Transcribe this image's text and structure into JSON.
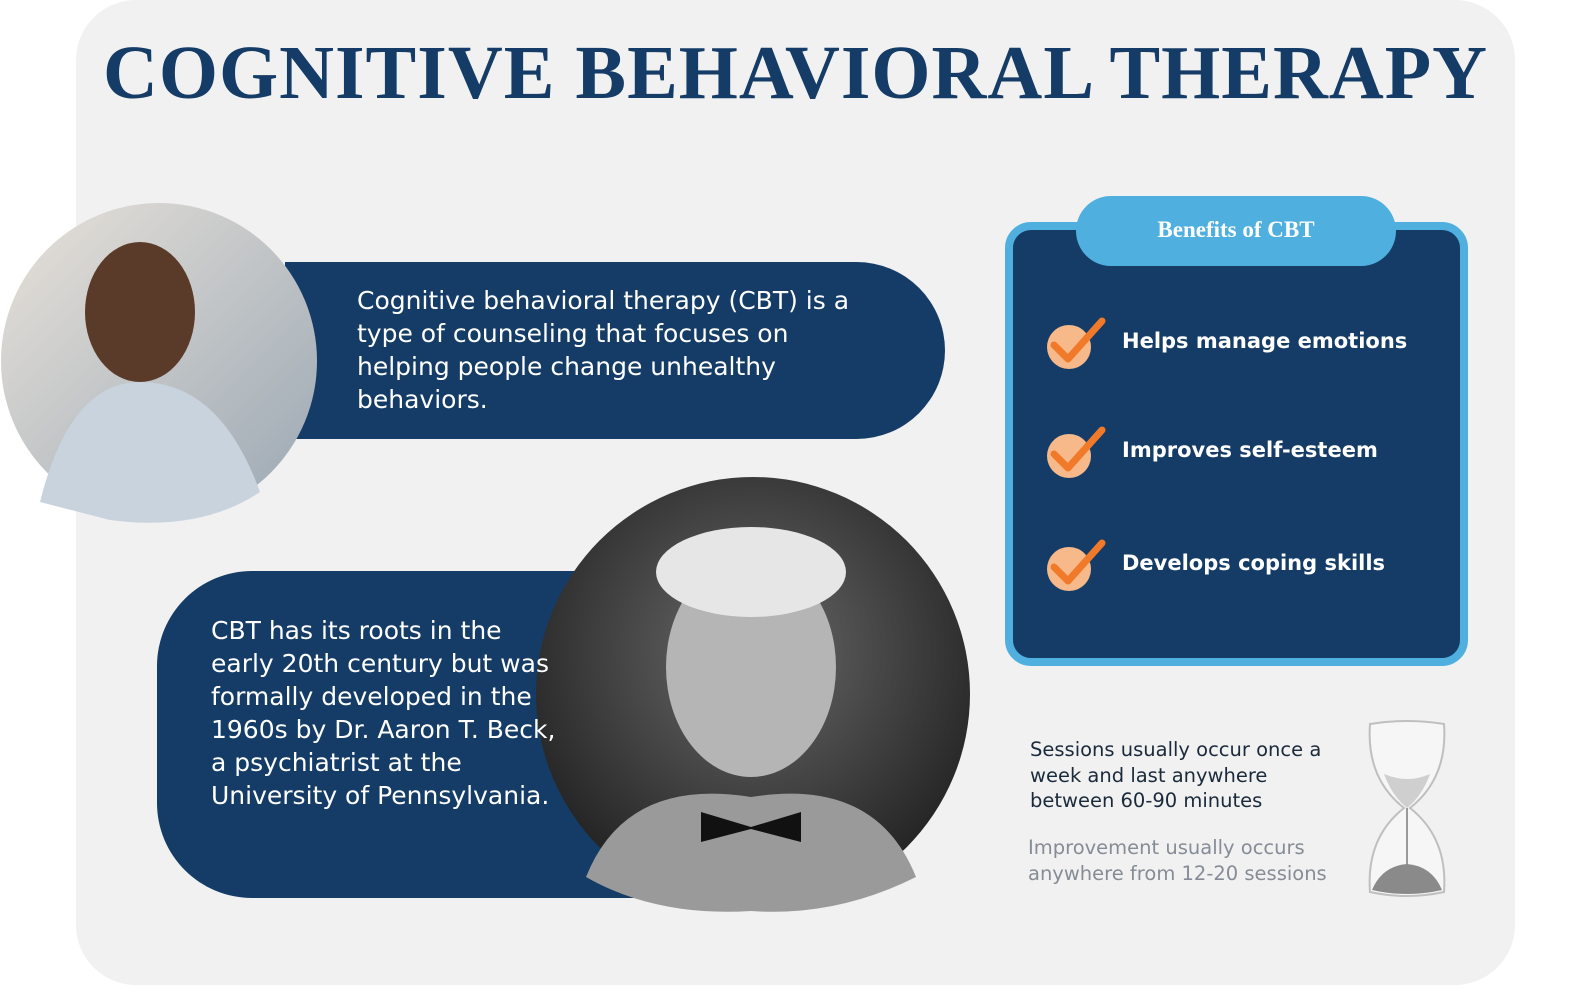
{
  "header": {
    "title": "COGNITIVE BEHAVIORAL THERAPY"
  },
  "intro": {
    "text": "Cognitive behavioral therapy (CBT) is a type of counseling that focuses on helping people change unhealthy behaviors."
  },
  "history": {
    "text": "CBT  has its roots in the early 20th century but was formally developed in the 1960s by Dr. Aaron T. Beck, a psychiatrist at the University of Pennsylvania."
  },
  "benefits": {
    "title": "Benefits of CBT",
    "items": [
      "Helps manage emotions",
      "Improves self-esteem",
      "Develops coping skills"
    ]
  },
  "sessions": {
    "frequency": "Sessions usually occur once a week and last anywhere between 60-90 minutes",
    "improvement": "Improvement usually occurs anywhere from 12-20 sessions"
  }
}
